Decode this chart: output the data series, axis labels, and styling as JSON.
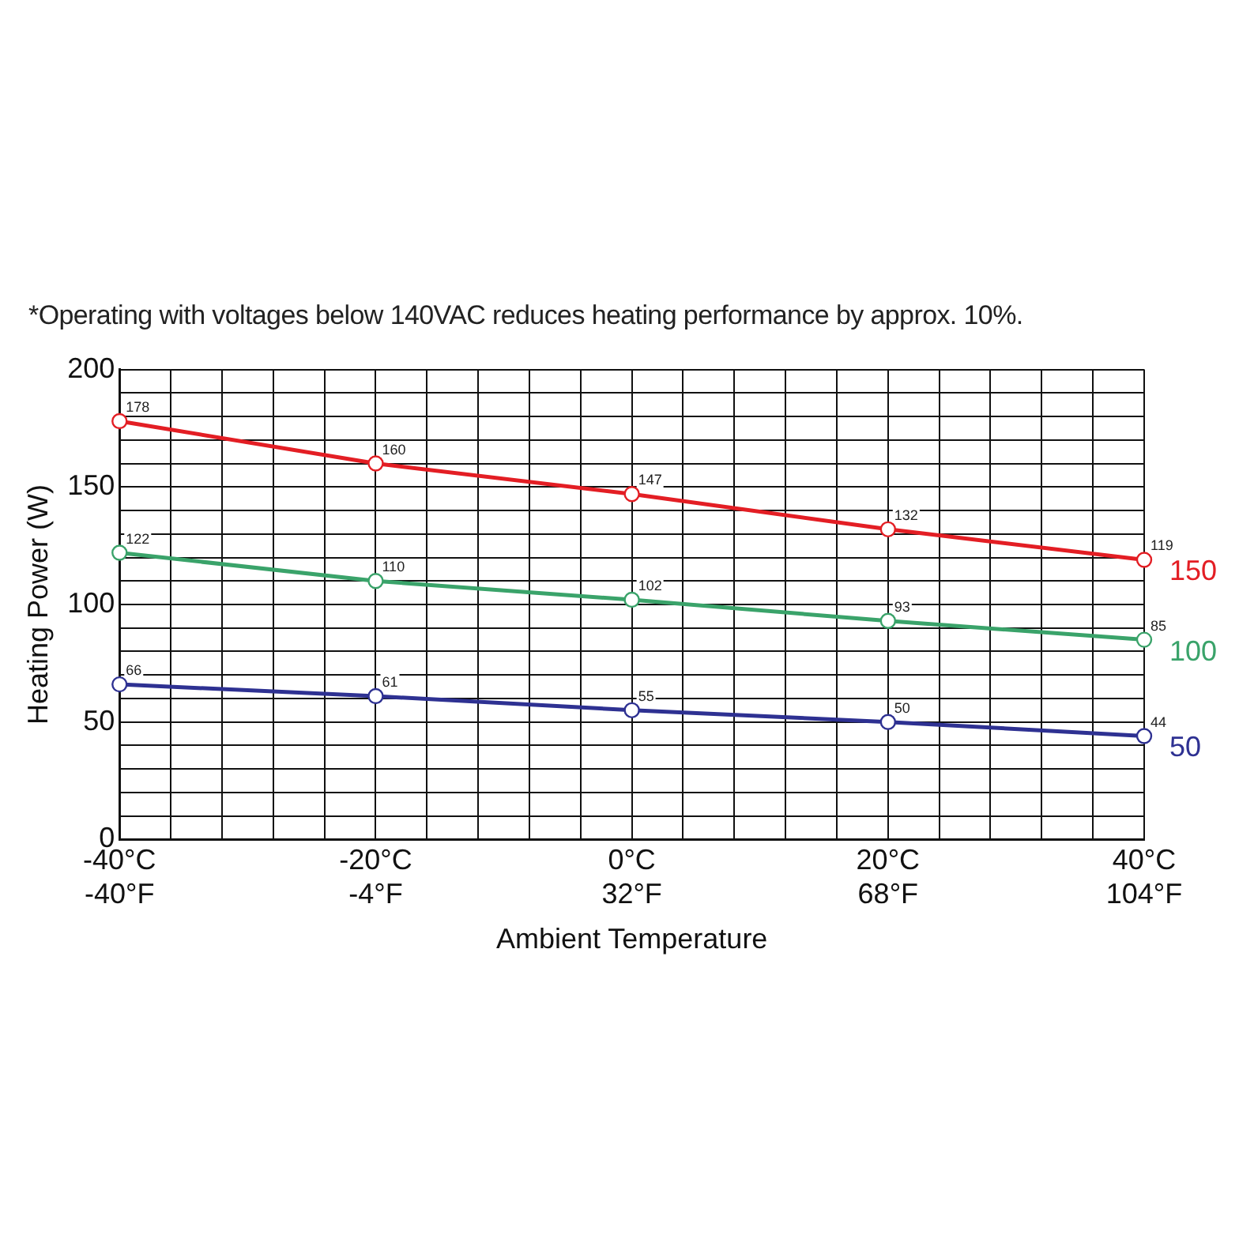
{
  "chart_data": {
    "type": "line",
    "xlabel": "Ambient Temperature",
    "ylabel": "Heating Power (W)",
    "annotations": [
      "*Operating with voltages below 140VAC reduces heating performance by approx. 10%."
    ],
    "categories": [
      "-40°C\n-40°F",
      null,
      null,
      null,
      null,
      "-20°C\n-4°F",
      null,
      null,
      null,
      null,
      "0°C\n32°F",
      null,
      null,
      null,
      null,
      "20°C\n68°F",
      null,
      null,
      null,
      null,
      "40°C\n104°F"
    ],
    "series": [
      {
        "name": "150",
        "color": "#e31e24",
        "values": [
          178,
          null,
          null,
          null,
          null,
          160,
          null,
          null,
          null,
          null,
          147,
          null,
          null,
          null,
          null,
          132,
          null,
          null,
          null,
          null,
          119
        ]
      },
      {
        "name": "100",
        "color": "#3aa36a",
        "values": [
          122,
          null,
          null,
          null,
          null,
          110,
          null,
          null,
          null,
          null,
          102,
          null,
          null,
          null,
          null,
          93,
          null,
          null,
          null,
          null,
          85
        ]
      },
      {
        "name": "50",
        "color": "#2e3192",
        "values": [
          66,
          null,
          null,
          null,
          null,
          61,
          null,
          null,
          null,
          null,
          55,
          null,
          null,
          null,
          null,
          50,
          null,
          null,
          null,
          null,
          44
        ]
      }
    ],
    "ylim": [
      0,
      200
    ],
    "yticks": [
      0,
      {
        "value": 10,
        "label": null
      },
      {
        "value": 20,
        "label": null
      },
      {
        "value": 30,
        "label": null
      },
      {
        "value": 40,
        "label": null
      },
      50,
      {
        "value": 60,
        "label": null
      },
      {
        "value": 70,
        "label": null
      },
      {
        "value": 80,
        "label": null
      },
      {
        "value": 90,
        "label": null
      },
      100,
      {
        "value": 110,
        "label": null
      },
      {
        "value": 120,
        "label": null
      },
      {
        "value": 130,
        "label": null
      },
      {
        "value": 140,
        "label": null
      },
      150,
      {
        "value": 160,
        "label": null
      },
      {
        "value": 170,
        "label": null
      },
      {
        "value": 180,
        "label": null
      },
      {
        "value": 190,
        "label": null
      },
      200
    ],
    "grid": true,
    "marker": "circle",
    "line_style": "solid",
    "data_labels": true,
    "legend": "right"
  }
}
